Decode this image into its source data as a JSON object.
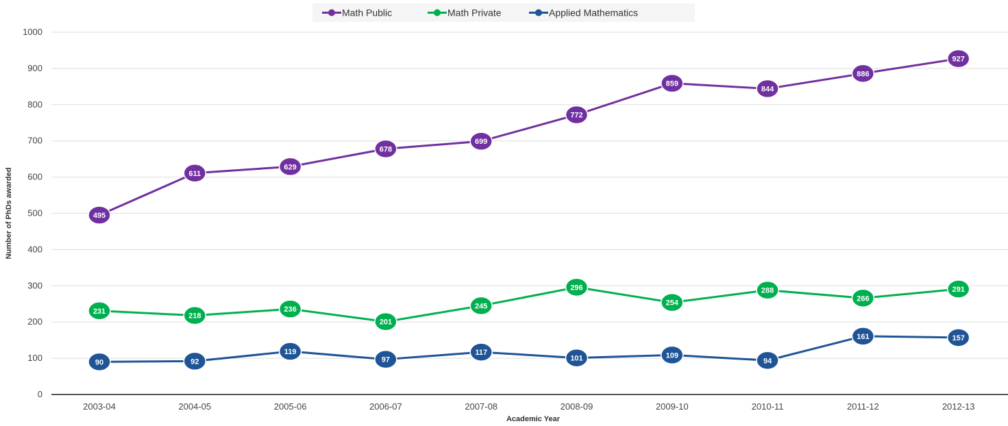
{
  "chart_data": {
    "type": "line",
    "title": "",
    "xlabel": "Academic Year",
    "ylabel": "Number of PhDs awarded",
    "categories": [
      "2003-04",
      "2004-05",
      "2005-06",
      "2006-07",
      "2007-08",
      "2008-09",
      "2009-10",
      "2010-11",
      "2011-12",
      "2012-13"
    ],
    "ylim": [
      0,
      1000
    ],
    "yticks": [
      0,
      100,
      200,
      300,
      400,
      500,
      600,
      700,
      800,
      900,
      1000
    ],
    "grid": "horizontal",
    "legend_position": "top-center",
    "series": [
      {
        "name": "Math Public",
        "color": "#7030a0",
        "values": [
          495,
          611,
          629,
          678,
          699,
          772,
          859,
          844,
          886,
          927
        ]
      },
      {
        "name": "Math Private",
        "color": "#00b050",
        "values": [
          231,
          218,
          236,
          201,
          245,
          296,
          254,
          288,
          266,
          291
        ]
      },
      {
        "name": "Applied Mathematics",
        "color": "#1f5496",
        "values": [
          90,
          92,
          119,
          97,
          117,
          101,
          109,
          94,
          161,
          157
        ]
      }
    ]
  },
  "colors": {
    "grid": "#dddddd",
    "axis": "#555555",
    "legend_bg": "#f5f5f5"
  }
}
